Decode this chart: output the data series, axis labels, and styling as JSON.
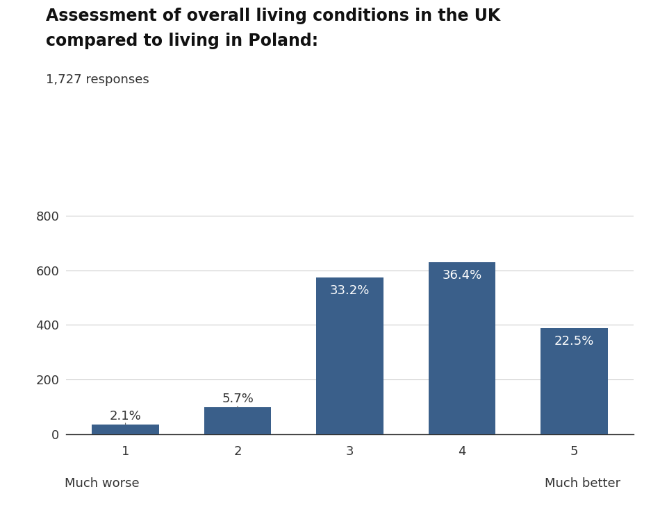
{
  "title_line1": "Assessment of overall living conditions in the UK",
  "title_line2": "compared to living in Poland:",
  "subtitle": "1,727 responses",
  "categories": [
    1,
    2,
    3,
    4,
    5
  ],
  "values": [
    36,
    98,
    574,
    629,
    389
  ],
  "percentages": [
    "2.1%",
    "5.7%",
    "33.2%",
    "36.4%",
    "22.5%"
  ],
  "bar_color": "#3A5F8A",
  "label_color_outside": "#333333",
  "label_color_inside": "#ffffff",
  "xlabel_left": "Much worse",
  "xlabel_right": "Much better",
  "ylim": [
    0,
    850
  ],
  "yticks": [
    0,
    200,
    400,
    600,
    800
  ],
  "background_color": "#ffffff",
  "grid_color": "#cccccc",
  "title_fontsize": 17,
  "subtitle_fontsize": 13,
  "tick_fontsize": 13,
  "label_fontsize": 13,
  "xlabel_fontsize": 13
}
